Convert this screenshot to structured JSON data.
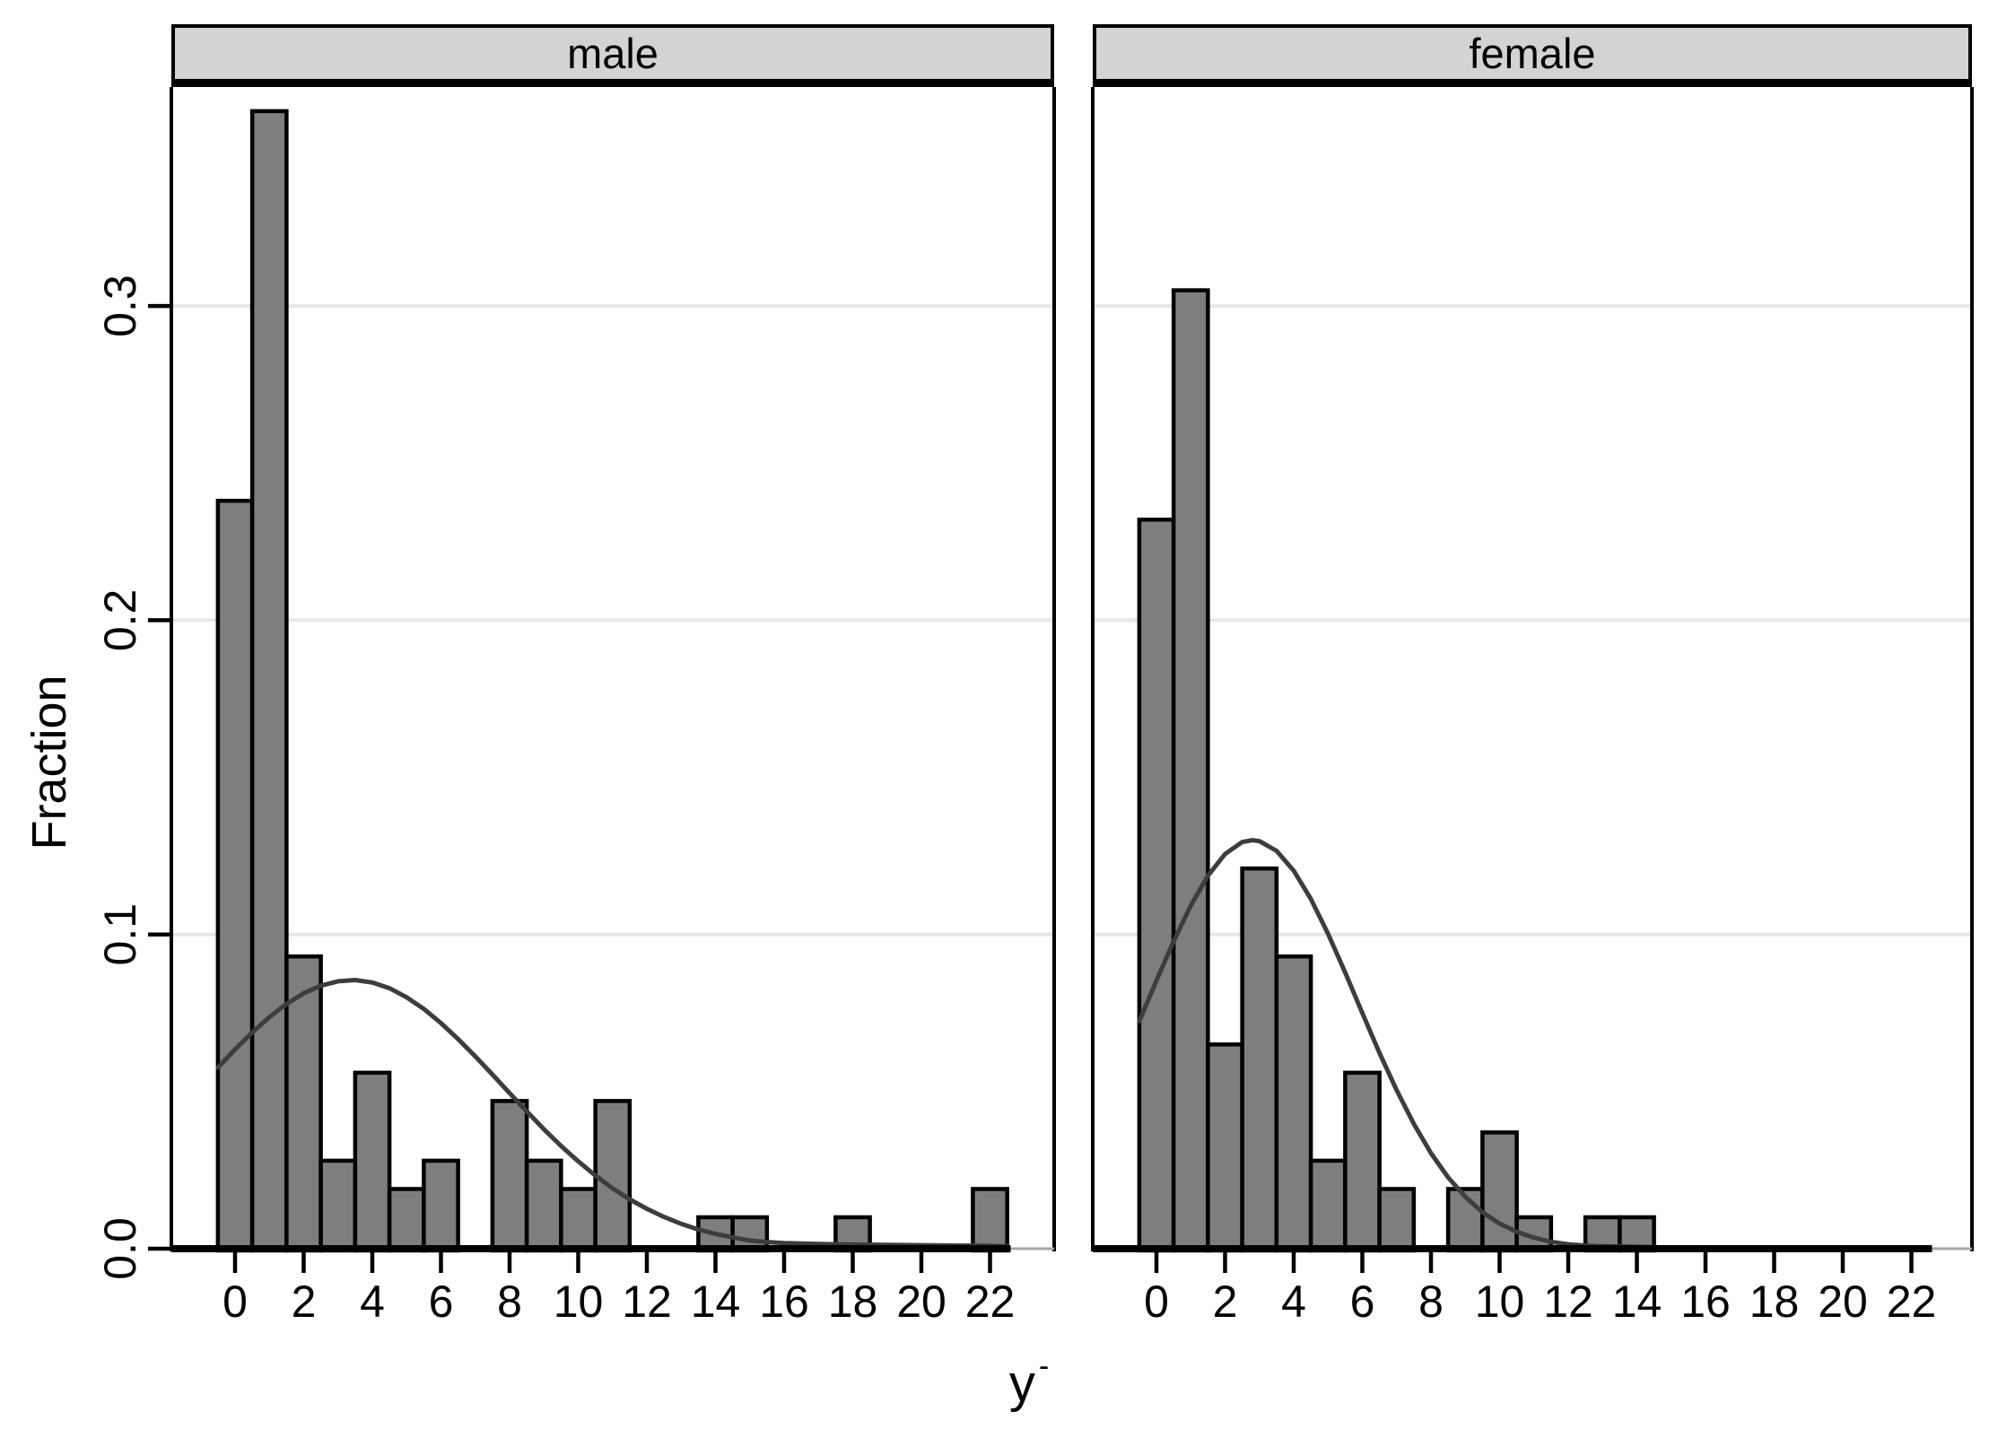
{
  "figure": {
    "background": "#ffffff",
    "xlabel_suffix": "-"
  },
  "colors": {
    "bar_fill": "#7e7e7e",
    "bar_stroke": "#000000",
    "header_fill": "#d3d3d3",
    "gridline": "#e7e7e7",
    "curve": "#3d3d3d",
    "axis": "#000000",
    "axis_faint": "#a6a6a6",
    "text": "#000000"
  },
  "chart_data": {
    "type": "bar",
    "title": "",
    "xlabel": "y",
    "ylabel": "Fraction",
    "grid": "horizontal-only",
    "legend": "none",
    "xlim": [
      -1.85,
      23.9
    ],
    "ylim": [
      0,
      0.37
    ],
    "x_ticks": [
      0,
      2,
      4,
      6,
      8,
      10,
      12,
      14,
      16,
      18,
      20,
      22
    ],
    "y_ticks": [
      0,
      0.1,
      0.2,
      0.3
    ],
    "y_tick_labels": [
      "0.0",
      "0.1",
      "0.2",
      "0.3"
    ],
    "panels": [
      {
        "label": "male",
        "bars": [
          {
            "x": 0,
            "y": 0.238
          },
          {
            "x": 1,
            "y": 0.362
          },
          {
            "x": 2,
            "y": 0.093
          },
          {
            "x": 3,
            "y": 0.028
          },
          {
            "x": 4,
            "y": 0.056
          },
          {
            "x": 5,
            "y": 0.019
          },
          {
            "x": 6,
            "y": 0.028
          },
          {
            "x": 8,
            "y": 0.047
          },
          {
            "x": 9,
            "y": 0.028
          },
          {
            "x": 10,
            "y": 0.019
          },
          {
            "x": 11,
            "y": 0.047
          },
          {
            "x": 14,
            "y": 0.01
          },
          {
            "x": 15,
            "y": 0.01
          },
          {
            "x": 18,
            "y": 0.01
          },
          {
            "x": 22,
            "y": 0.019
          }
        ],
        "curve": [
          [
            -0.5,
            0.0577
          ],
          [
            0,
            0.0634
          ],
          [
            0.5,
            0.0688
          ],
          [
            1,
            0.0737
          ],
          [
            1.5,
            0.0779
          ],
          [
            2,
            0.0813
          ],
          [
            2.5,
            0.0837
          ],
          [
            3,
            0.0851
          ],
          [
            3.5,
            0.0855
          ],
          [
            4,
            0.0847
          ],
          [
            4.5,
            0.0829
          ],
          [
            5,
            0.08
          ],
          [
            5.5,
            0.0763
          ],
          [
            6,
            0.0718
          ],
          [
            6.5,
            0.0667
          ],
          [
            7,
            0.0612
          ],
          [
            7.5,
            0.0554
          ],
          [
            8,
            0.0495
          ],
          [
            8.5,
            0.0437
          ],
          [
            9,
            0.038
          ],
          [
            9.5,
            0.0327
          ],
          [
            10,
            0.0278
          ],
          [
            10.5,
            0.0233
          ],
          [
            11,
            0.0192
          ],
          [
            11.5,
            0.0157
          ],
          [
            12,
            0.0127
          ],
          [
            12.5,
            0.0101
          ],
          [
            13,
            0.0079
          ],
          [
            13.5,
            0.0061
          ],
          [
            14,
            0.0047
          ],
          [
            14.5,
            0.0036
          ],
          [
            15,
            0.0026
          ],
          [
            15.5,
            0.0021
          ],
          [
            16,
            0.0018
          ],
          [
            17,
            0.0015
          ],
          [
            18,
            0.0013
          ],
          [
            19,
            0.0012
          ],
          [
            20,
            0.0011
          ],
          [
            21,
            0.001
          ],
          [
            22,
            0.0009
          ],
          [
            22.5,
            0.0008
          ]
        ]
      },
      {
        "label": "female",
        "bars": [
          {
            "x": 0,
            "y": 0.232
          },
          {
            "x": 1,
            "y": 0.305
          },
          {
            "x": 2,
            "y": 0.065
          },
          {
            "x": 3,
            "y": 0.121
          },
          {
            "x": 4,
            "y": 0.093
          },
          {
            "x": 5,
            "y": 0.028
          },
          {
            "x": 6,
            "y": 0.056
          },
          {
            "x": 7,
            "y": 0.019
          },
          {
            "x": 9,
            "y": 0.019
          },
          {
            "x": 10,
            "y": 0.037
          },
          {
            "x": 11,
            "y": 0.01
          },
          {
            "x": 13,
            "y": 0.01
          },
          {
            "x": 14,
            "y": 0.01
          }
        ],
        "curve": [
          [
            -0.5,
            0.0724
          ],
          [
            0,
            0.0853
          ],
          [
            0.5,
            0.0978
          ],
          [
            1,
            0.1092
          ],
          [
            1.5,
            0.1187
          ],
          [
            2,
            0.1256
          ],
          [
            2.5,
            0.1294
          ],
          [
            2.8,
            0.13
          ],
          [
            3,
            0.1297
          ],
          [
            3.5,
            0.1266
          ],
          [
            4,
            0.1203
          ],
          [
            4.5,
            0.1113
          ],
          [
            5,
            0.1002
          ],
          [
            5.5,
            0.0879
          ],
          [
            6,
            0.075
          ],
          [
            6.5,
            0.0623
          ],
          [
            7,
            0.0504
          ],
          [
            7.5,
            0.0397
          ],
          [
            8,
            0.0304
          ],
          [
            8.5,
            0.0227
          ],
          [
            9,
            0.0165
          ],
          [
            9.5,
            0.0116
          ],
          [
            10,
            0.008
          ],
          [
            10.5,
            0.0054
          ],
          [
            11,
            0.0035
          ],
          [
            11.5,
            0.0022
          ],
          [
            12,
            0.0014
          ],
          [
            12.5,
            0.001
          ],
          [
            13,
            0.0008
          ],
          [
            13.5,
            0.0007
          ],
          [
            14,
            0.0006
          ],
          [
            14.6,
            0.0005
          ]
        ]
      }
    ]
  }
}
